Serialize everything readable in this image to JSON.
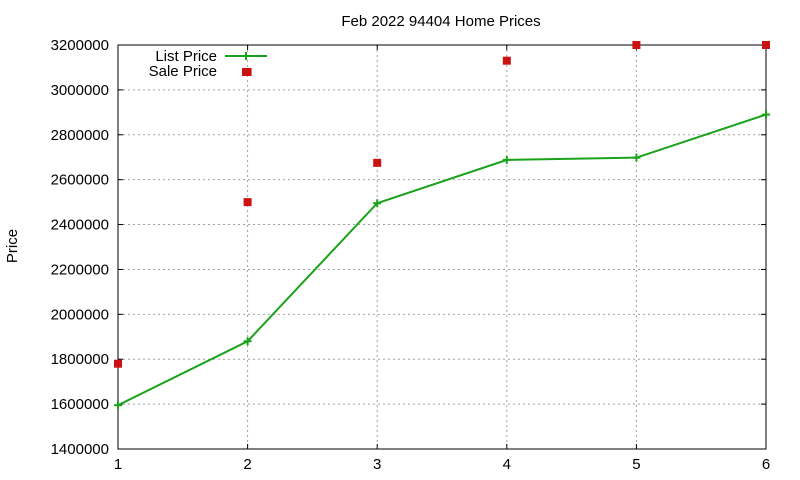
{
  "chart_data": {
    "type": "line",
    "title": "Feb 2022 94404 Home Prices",
    "xlabel": "",
    "ylabel": "Price",
    "x": [
      1,
      2,
      3,
      4,
      5,
      6
    ],
    "xlim": [
      1,
      6
    ],
    "ylim": [
      1400000,
      3200000
    ],
    "xticks": [
      "1",
      "2",
      "3",
      "4",
      "5",
      "6"
    ],
    "yticks": [
      "1400000",
      "1600000",
      "1800000",
      "2000000",
      "2200000",
      "2400000",
      "2600000",
      "2800000",
      "3000000",
      "3200000"
    ],
    "grid": true,
    "legend_position": "top-left",
    "series": [
      {
        "name": "List Price",
        "style": "line-with-plus-markers",
        "color": "#1aa31a",
        "values": [
          1595000,
          1880000,
          2495000,
          2688000,
          2698000,
          2890000
        ]
      },
      {
        "name": "Sale Price",
        "style": "square-markers",
        "color": "#cc1111",
        "values": [
          1780000,
          2500000,
          2675000,
          3130000,
          3200000,
          3200000
        ]
      }
    ],
    "extra_points": [
      {
        "series": "Sale Price",
        "x": 2,
        "y": 3080000
      }
    ]
  }
}
